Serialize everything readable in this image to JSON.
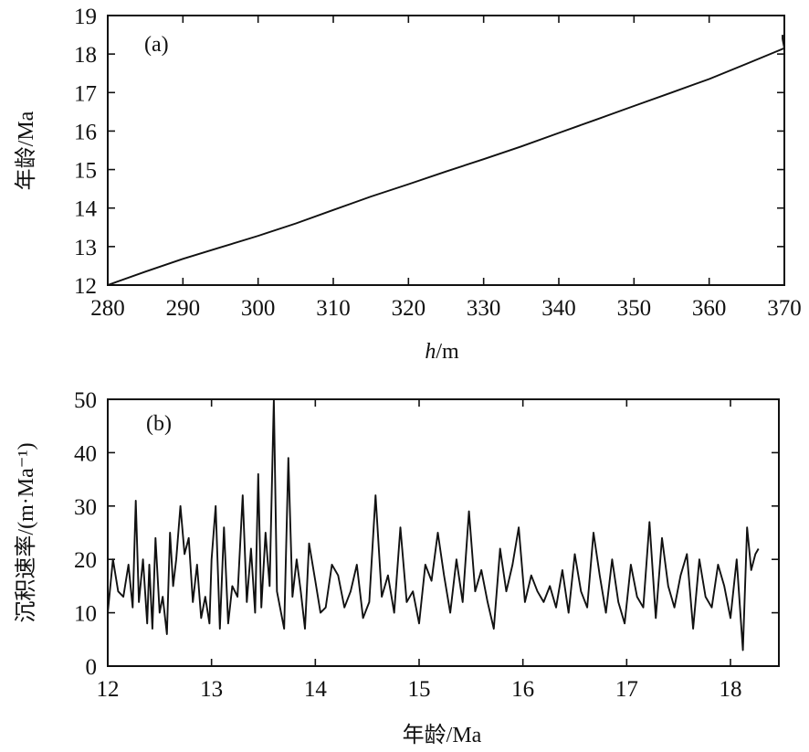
{
  "chart_data": [
    {
      "type": "line",
      "panel_label": "(a)",
      "xlabel": "h/m",
      "ylabel": "年龄/Ma",
      "xlim": [
        280,
        370
      ],
      "ylim": [
        12,
        19
      ],
      "xticks": [
        280,
        290,
        300,
        310,
        320,
        330,
        340,
        350,
        360,
        370
      ],
      "yticks": [
        12,
        13,
        14,
        15,
        16,
        17,
        18,
        19
      ],
      "grid": false,
      "series": [
        {
          "x": [
            280,
            285,
            290,
            295,
            300,
            305,
            310,
            315,
            320,
            325,
            330,
            335,
            340,
            345,
            350,
            355,
            360,
            365,
            370
          ],
          "values": [
            12.0,
            12.35,
            12.68,
            12.98,
            13.28,
            13.6,
            13.95,
            14.3,
            14.62,
            14.95,
            15.27,
            15.6,
            15.95,
            16.3,
            16.65,
            17.0,
            17.35,
            17.75,
            18.15
          ]
        }
      ],
      "extra_points": [
        [
          371.5,
          18.25
        ],
        [
          373.0,
          18.45
        ],
        [
          374.3,
          18.55
        ]
      ]
    },
    {
      "type": "line",
      "panel_label": "(b)",
      "xlabel": "年龄/Ma",
      "ylabel": "沉积速率/(m·Ma⁻¹)",
      "xlim": [
        12,
        18.6
      ],
      "ylim": [
        0,
        50
      ],
      "xticks": [
        12,
        13,
        14,
        15,
        16,
        17,
        18
      ],
      "yticks": [
        0,
        10,
        20,
        30,
        40,
        50
      ],
      "grid": false,
      "series": [
        {
          "x": [
            12.0,
            12.05,
            12.1,
            12.15,
            12.2,
            12.24,
            12.27,
            12.3,
            12.34,
            12.38,
            12.4,
            12.43,
            12.46,
            12.5,
            12.53,
            12.57,
            12.6,
            12.63,
            12.66,
            12.7,
            12.74,
            12.78,
            12.82,
            12.86,
            12.9,
            12.94,
            12.98,
            13.0,
            13.04,
            13.08,
            13.12,
            13.16,
            13.2,
            13.25,
            13.3,
            13.34,
            13.38,
            13.42,
            13.45,
            13.48,
            13.52,
            13.56,
            13.6,
            13.63,
            13.67,
            13.7,
            13.74,
            13.78,
            13.82,
            13.86,
            13.9,
            13.94,
            14.0,
            14.05,
            14.1,
            14.16,
            14.22,
            14.28,
            14.34,
            14.4,
            14.46,
            14.52,
            14.58,
            14.64,
            14.7,
            14.76,
            14.82,
            14.88,
            14.94,
            15.0,
            15.06,
            15.12,
            15.18,
            15.24,
            15.3,
            15.36,
            15.42,
            15.48,
            15.54,
            15.6,
            15.66,
            15.72,
            15.78,
            15.84,
            15.9,
            15.96,
            16.02,
            16.08,
            16.14,
            16.2,
            16.26,
            16.32,
            16.38,
            16.44,
            16.5,
            16.56,
            16.62,
            16.68,
            16.74,
            16.8,
            16.86,
            16.92,
            16.98,
            17.04,
            17.1,
            17.16,
            17.22,
            17.28,
            17.34,
            17.4,
            17.46,
            17.52,
            17.58,
            17.64,
            17.7,
            17.76,
            17.82,
            17.88,
            17.94,
            18.0,
            18.06,
            18.12,
            18.16,
            18.2,
            18.24,
            18.27
          ],
          "values": [
            10,
            20,
            14,
            13,
            19,
            11,
            31,
            12,
            20,
            8,
            19,
            7,
            24,
            10,
            13,
            6,
            25,
            15,
            20,
            30,
            21,
            24,
            12,
            19,
            9,
            13,
            8,
            20,
            30,
            7,
            26,
            8,
            15,
            13,
            32,
            12,
            22,
            10,
            36,
            11,
            25,
            15,
            50,
            14,
            10,
            7,
            39,
            13,
            20,
            14,
            7,
            23,
            16,
            10,
            11,
            19,
            17,
            11,
            14,
            19,
            9,
            12,
            32,
            13,
            17,
            10,
            26,
            12,
            14,
            8,
            19,
            16,
            25,
            17,
            10,
            20,
            12,
            29,
            14,
            18,
            12,
            7,
            22,
            14,
            19,
            26,
            12,
            17,
            14,
            12,
            15,
            11,
            18,
            10,
            21,
            14,
            11,
            25,
            17,
            10,
            20,
            12,
            8,
            19,
            13,
            11,
            27,
            9,
            24,
            15,
            11,
            17,
            21,
            7,
            20,
            13,
            11,
            19,
            15,
            9,
            20,
            3,
            26,
            18,
            21,
            22
          ]
        }
      ]
    }
  ]
}
